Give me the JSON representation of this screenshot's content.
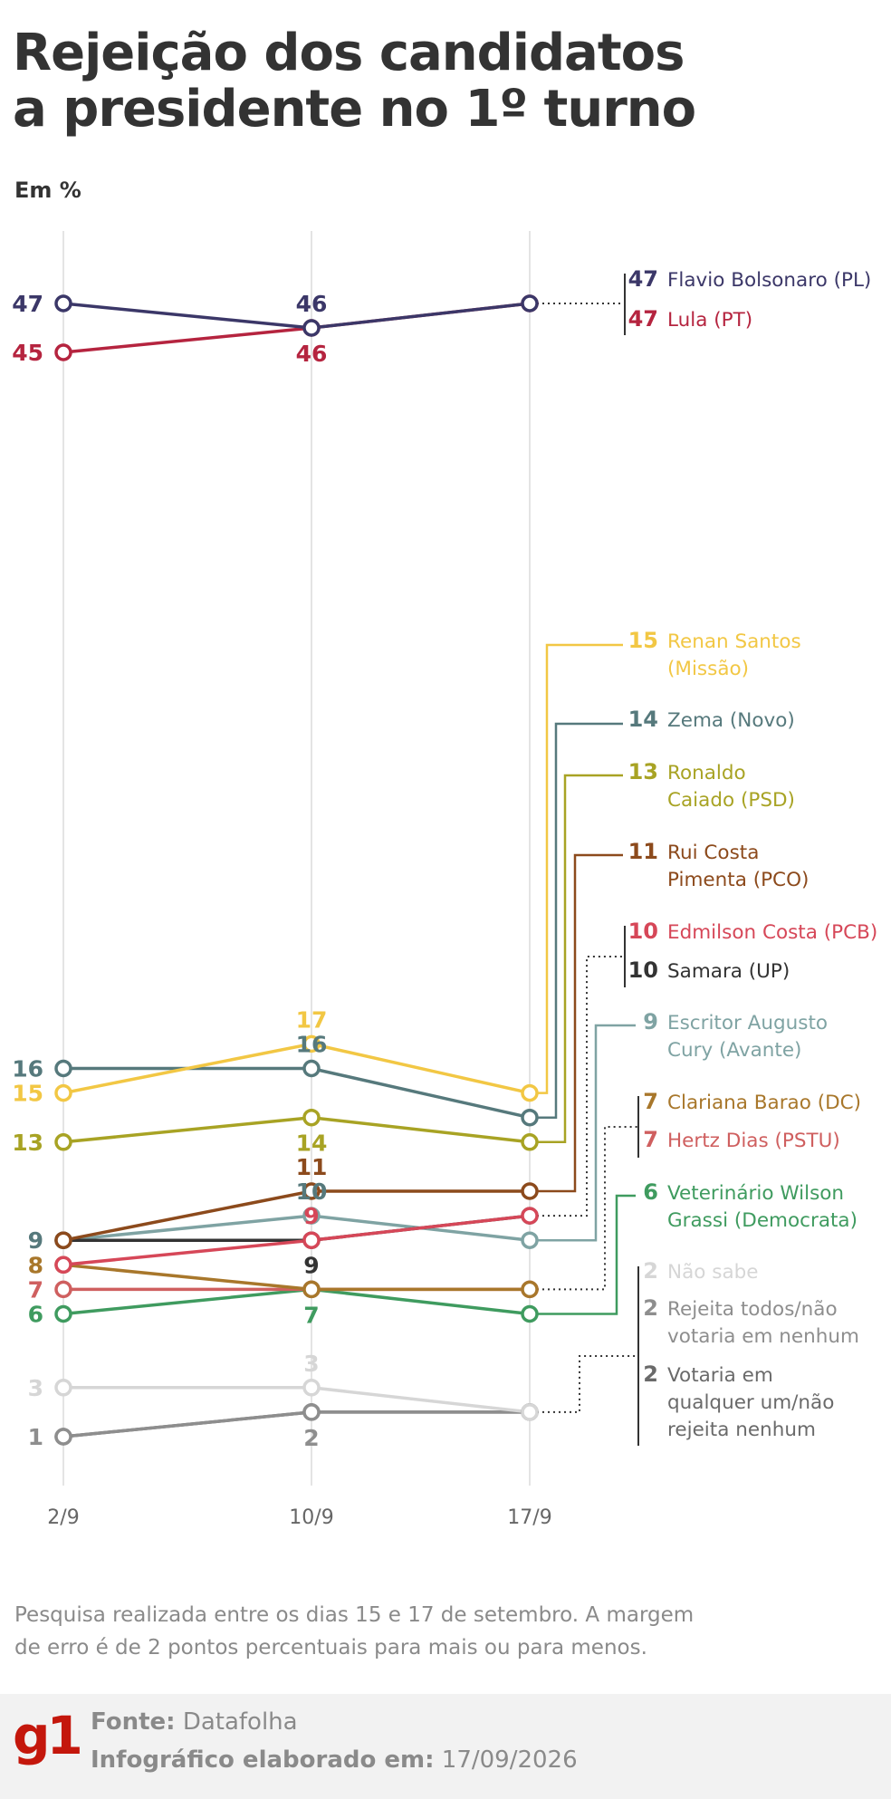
{
  "title": [
    "Rejeição dos candidatos",
    "a presidente no 1º turno"
  ],
  "unit_label": "Em %",
  "note": [
    "Pesquisa realizada entre os dias 15 e 17 de setembro. A margem",
    "de erro é de 2 pontos percentuais para mais ou para menos."
  ],
  "footer": {
    "logo": "g1",
    "source_label": "Fonte:",
    "source_value": "Datafolha",
    "date_label": "Infográfico elaborado em:",
    "date_value": "17/09/2026"
  },
  "chart_data": {
    "type": "line",
    "x": [
      "2/9",
      "10/9",
      "17/9"
    ],
    "ylabel": "Em %",
    "series": [
      {
        "name": "Flavio Bolsonaro (PL)",
        "values": [
          47,
          46,
          47
        ],
        "color": "#3b3768"
      },
      {
        "name": "Lula (PT)",
        "values": [
          45,
          46,
          47
        ],
        "color": "#b5243f"
      },
      {
        "name": "Renan Santos (Missão)",
        "values": [
          15,
          17,
          15
        ],
        "color": "#f2c744"
      },
      {
        "name": "Zema (Novo)",
        "values": [
          16,
          16,
          14
        ],
        "color": "#56797c"
      },
      {
        "name": "Ronaldo Caiado (PSD)",
        "values": [
          13,
          14,
          13
        ],
        "color": "#a8a324"
      },
      {
        "name": "Rui Costa Pimenta (PCO)",
        "values": [
          9,
          11,
          11
        ],
        "color": "#8c4a1c"
      },
      {
        "name": "Edmilson Costa (PCB)",
        "values": [
          8,
          9,
          10
        ],
        "color": "#d64758"
      },
      {
        "name": "Samara (UP)",
        "values": [
          9,
          9,
          10
        ],
        "color": "#333333"
      },
      {
        "name": "Escritor Augusto Cury (Avante)",
        "values": [
          9,
          10,
          9
        ],
        "color": "#7fa3a3"
      },
      {
        "name": "Clariana Barao (DC)",
        "values": [
          8,
          7,
          7
        ],
        "color": "#a8772b"
      },
      {
        "name": "Hertz Dias (PSTU)",
        "values": [
          7,
          7,
          7
        ],
        "color": "#cf5f5f"
      },
      {
        "name": "Veterinário Wilson Grassi (Democrata)",
        "values": [
          6,
          7,
          6
        ],
        "color": "#3f9b5f"
      },
      {
        "name": "Não sabe",
        "values": [
          3,
          3,
          2
        ],
        "color": "#d6d6d6"
      },
      {
        "name": "Rejeita todos/não votaria em nenhum",
        "values": [
          1,
          2,
          2
        ],
        "color": "#8e8e8e"
      },
      {
        "name": "Votaria em qualquer um/não rejeita nenhum",
        "values": [
          1,
          2,
          2
        ],
        "color": "#6a6a6a"
      }
    ],
    "point_labels": [
      {
        "x": 0,
        "y": 47,
        "text": "47",
        "color": "#3b3768",
        "side": "left"
      },
      {
        "x": 0,
        "y": 45,
        "text": "45",
        "color": "#b5243f",
        "side": "left"
      },
      {
        "x": 1,
        "y": 46,
        "text": "46",
        "color": "#3b3768",
        "side": "above"
      },
      {
        "x": 1,
        "y": 46,
        "text": "46",
        "color": "#b5243f",
        "side": "below"
      },
      {
        "x": 0,
        "y": 16,
        "text": "16",
        "color": "#56797c",
        "side": "left"
      },
      {
        "x": 0,
        "y": 15,
        "text": "15",
        "color": "#f2c744",
        "side": "left"
      },
      {
        "x": 0,
        "y": 13,
        "text": "13",
        "color": "#a8a324",
        "side": "left"
      },
      {
        "x": 0,
        "y": 9,
        "text": "9",
        "color": "#56797c",
        "side": "left"
      },
      {
        "x": 0,
        "y": 8,
        "text": "8",
        "color": "#a8772b",
        "side": "left"
      },
      {
        "x": 0,
        "y": 7,
        "text": "7",
        "color": "#cf5f5f",
        "side": "left"
      },
      {
        "x": 0,
        "y": 6,
        "text": "6",
        "color": "#3f9b5f",
        "side": "left"
      },
      {
        "x": 0,
        "y": 3,
        "text": "3",
        "color": "#d6d6d6",
        "side": "left"
      },
      {
        "x": 0,
        "y": 1,
        "text": "1",
        "color": "#8e8e8e",
        "side": "left"
      },
      {
        "x": 1,
        "y": 17,
        "text": "17",
        "color": "#f2c744",
        "side": "above"
      },
      {
        "x": 1,
        "y": 16,
        "text": "16",
        "color": "#56797c",
        "side": "above"
      },
      {
        "x": 1,
        "y": 14,
        "text": "14",
        "color": "#a8a324",
        "side": "below"
      },
      {
        "x": 1,
        "y": 11,
        "text": "11",
        "color": "#8c4a1c",
        "side": "above"
      },
      {
        "x": 1,
        "y": 10,
        "text": "10",
        "color": "#56797c",
        "side": "above"
      },
      {
        "x": 1,
        "y": 9,
        "text": "9",
        "color": "#d64758",
        "side": "above"
      },
      {
        "x": 1,
        "y": 7,
        "text": "9",
        "color": "#333333",
        "side": "above"
      },
      {
        "x": 1,
        "y": 7,
        "text": "7",
        "color": "#3f9b5f",
        "side": "below"
      },
      {
        "x": 1,
        "y": 3,
        "text": "3",
        "color": "#d6d6d6",
        "side": "above"
      },
      {
        "x": 1,
        "y": 2,
        "text": "2",
        "color": "#8e8e8e",
        "side": "below"
      }
    ],
    "end_labels": [
      {
        "y": 47,
        "lines": [
          "Flavio Bolsonaro (PL)"
        ],
        "value": "47",
        "color": "#3b3768"
      },
      {
        "y": 47,
        "lines": [
          "Lula (PT)"
        ],
        "value": "47",
        "color": "#b5243f"
      },
      {
        "y": 15,
        "lines": [
          "Renan Santos",
          "(Missão)"
        ],
        "value": "15",
        "color": "#f2c744"
      },
      {
        "y": 14,
        "lines": [
          "Zema (Novo)"
        ],
        "value": "14",
        "color": "#56797c"
      },
      {
        "y": 13,
        "lines": [
          "Ronaldo",
          "Caiado (PSD)"
        ],
        "value": "13",
        "color": "#a8a324"
      },
      {
        "y": 11,
        "lines": [
          "Rui Costa",
          "Pimenta (PCO)"
        ],
        "value": "11",
        "color": "#8c4a1c"
      },
      {
        "y": 10,
        "lines": [
          "Edmilson Costa (PCB)"
        ],
        "value": "10",
        "color": "#d64758"
      },
      {
        "y": 10,
        "lines": [
          "Samara (UP)"
        ],
        "value": "10",
        "color": "#333333"
      },
      {
        "y": 9,
        "lines": [
          "Escritor Augusto",
          "Cury (Avante)"
        ],
        "value": "9",
        "color": "#7fa3a3"
      },
      {
        "y": 7,
        "lines": [
          "Clariana Barao (DC)"
        ],
        "value": "7",
        "color": "#a8772b"
      },
      {
        "y": 7,
        "lines": [
          "Hertz Dias (PSTU)"
        ],
        "value": "7",
        "color": "#cf5f5f"
      },
      {
        "y": 6,
        "lines": [
          "Veterinário Wilson",
          "Grassi (Democrata)"
        ],
        "value": "6",
        "color": "#3f9b5f"
      },
      {
        "y": 2,
        "lines": [
          "Não sabe"
        ],
        "value": "2",
        "color": "#d6d6d6"
      },
      {
        "y": 2,
        "lines": [
          "Rejeita todos/não",
          "votaria em nenhum"
        ],
        "value": "2",
        "color": "#8e8e8e"
      },
      {
        "y": 2,
        "lines": [
          "Votaria em",
          "qualquer um/não",
          "rejeita nenhum"
        ],
        "value": "2",
        "color": "#6a6a6a"
      }
    ],
    "grid": "vertical"
  }
}
